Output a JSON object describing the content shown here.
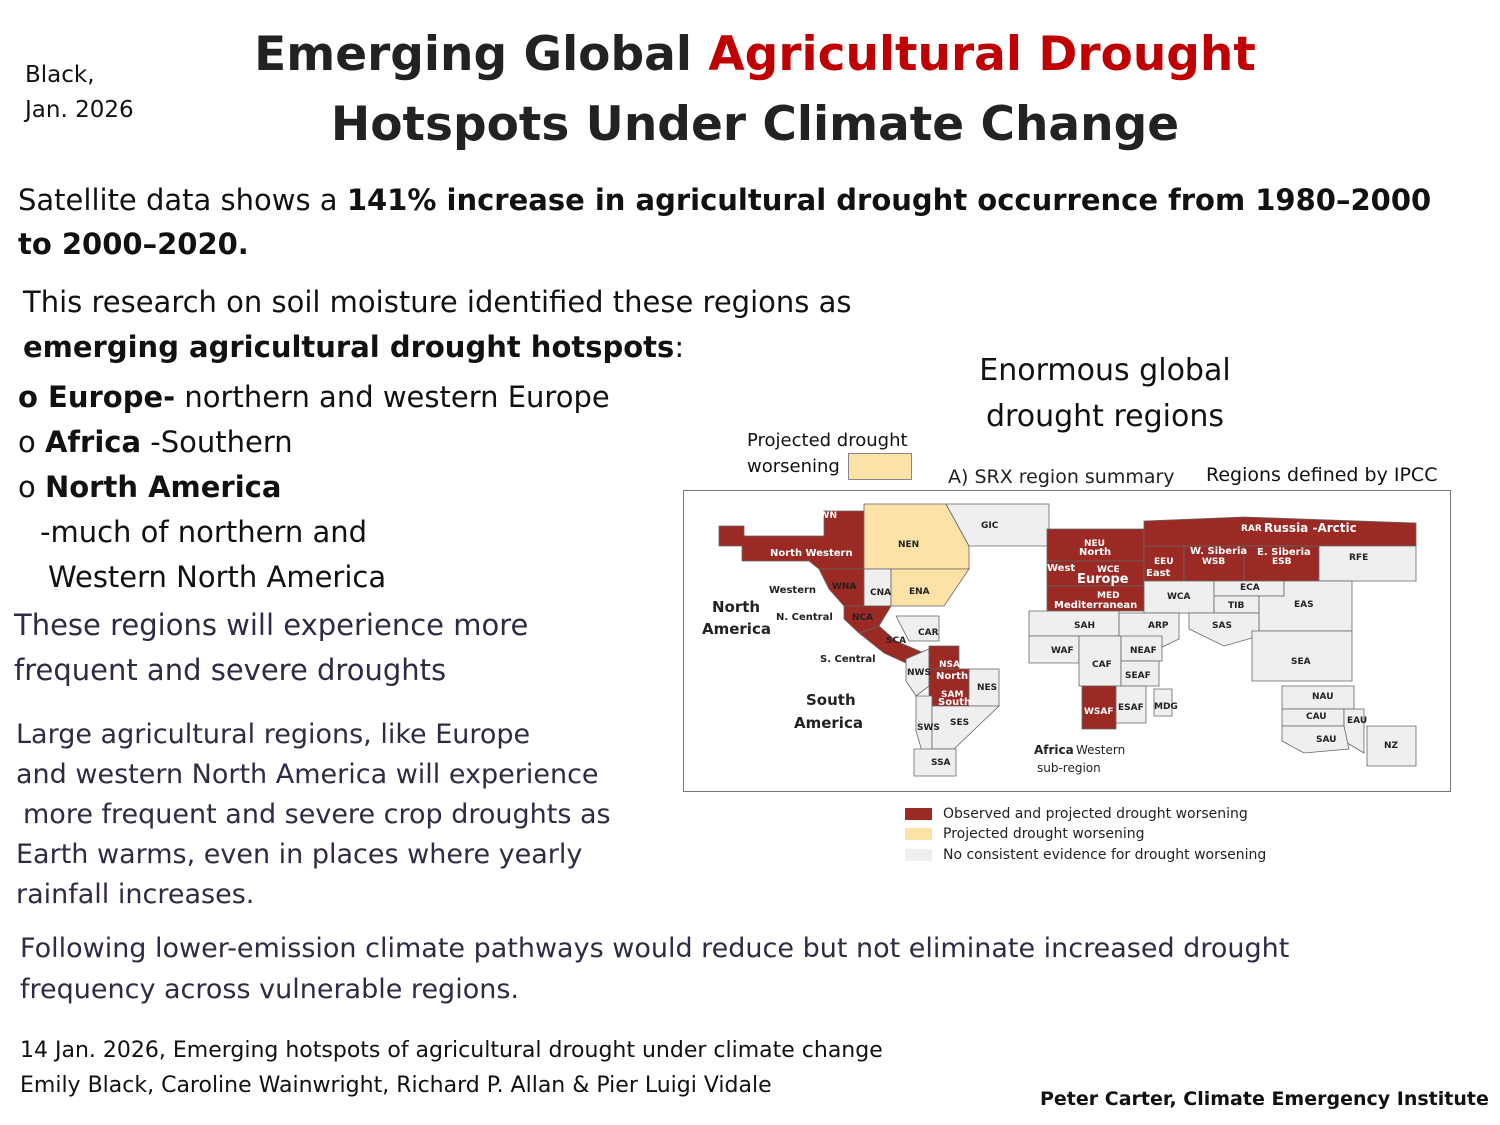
{
  "author_tag": {
    "line1": "Black,",
    "line2": "Jan. 2026"
  },
  "title": {
    "part1": "Emerging Global ",
    "highlight": "Agricultural Drought",
    "line2": "Hotspots Under Climate Change"
  },
  "stat": {
    "prefix": "Satellite data shows a ",
    "bold": "141% increase in agricultural drought occurrence from 1980–2000 to 2000–2020."
  },
  "research": {
    "line1": "This research on soil moisture identified these regions as",
    "bold": "emerging agricultural drought hotspots",
    "colon": ":"
  },
  "hotspots": [
    {
      "bullet": "o ",
      "bold": "Europe-",
      "text": " northern and western Europe"
    },
    {
      "bullet": "o ",
      "bold": "Africa",
      "text": " -Southern"
    },
    {
      "bullet": "o ",
      "bold": "North America",
      "text": ""
    }
  ],
  "na_detail": {
    "line1": "-much of northern and",
    "line2": "Western North America"
  },
  "experience": {
    "line1": "These regions will experience more",
    "line2": "frequent and severe droughts"
  },
  "large_regions": {
    "line1": "Large agricultural regions, like Europe",
    "line2": "and western North America will experience",
    "line3": "more frequent and severe crop droughts as",
    "line4": "Earth warms,  even in places where yearly",
    "line5": "rainfall increases."
  },
  "pathways": {
    "line1": "Following lower-emission climate pathways would reduce but not eliminate increased drought",
    "line2": "frequency across vulnerable regions."
  },
  "citation": {
    "line1": "14 Jan. 2026, Emerging hotspots of agricultural drought under climate change",
    "line2": "Emily Black, Caroline Wainwright, Richard P. Allan & Pier Luigi Vidale"
  },
  "credit": "Peter Carter, Climate Emergency Institute",
  "figure": {
    "legend_top": {
      "line1": "Projected drought",
      "line2": "worsening"
    },
    "enormous": {
      "line1": "Enormous global",
      "line2": "drought regions"
    },
    "panel_title": "A) SRX region summary",
    "ipcc_note": "Regions defined by IPCC",
    "colors": {
      "observed": "#9b2a24",
      "projected": "#fde2a7",
      "none": "#efefef"
    },
    "legend": [
      {
        "label": "Observed and projected drought worsening"
      },
      {
        "label": "Projected drought worsening"
      },
      {
        "label": "No consistent evidence for drought worsening"
      }
    ],
    "map_labels": {
      "nwn": "NWN",
      "north_western": "North Western",
      "nen": "NEN",
      "gic": "GIC",
      "western": "Western",
      "wna": "WNA",
      "cna": "CNA",
      "ena": "ENA",
      "north": "North",
      "america": "America",
      "n_central": "N. Central",
      "nca": "NCA",
      "sca": "SCA",
      "car": "CAR",
      "s_central": "S. Central",
      "nsa": "NSA",
      "sa_north": "North",
      "nws": "NWS",
      "sam": "SAM",
      "sa_south": "South",
      "nes": "NES",
      "sws": "SWS",
      "ses": "SES",
      "ssa": "SSA",
      "south": "South",
      "south_america": "America",
      "neu": "NEU",
      "eu_north": "North",
      "eu_west": "West",
      "wce": "WCE",
      "europe": "Europe",
      "eeu": "EEU",
      "eu_east": "East",
      "med": "MED",
      "mediterranean": "Mediterranean",
      "rar": "RAR",
      "russia_arctic": "Russia -Arctic",
      "w_siberia": "W. Siberia",
      "wsb": "WSB",
      "e_siberia": "E. Siberia",
      "esb": "ESB",
      "rfe": "RFE",
      "wca": "WCA",
      "eca": "ECA",
      "tib": "TIB",
      "eas": "EAS",
      "sah": "SAH",
      "arp": "ARP",
      "sas": "SAS",
      "waf": "WAF",
      "neaf": "NEAF",
      "caf": "CAF",
      "seaf": "SEAF",
      "sea": "SEA",
      "wsaf": "WSAF",
      "esaf": "ESAF",
      "mdg": "MDG",
      "nau": "NAU",
      "cau": "CAU",
      "eau": "EAU",
      "sau": "SAU",
      "nz": "NZ",
      "africa": "Africa",
      "africa_western": "Western",
      "sub_region": "sub-region"
    }
  }
}
